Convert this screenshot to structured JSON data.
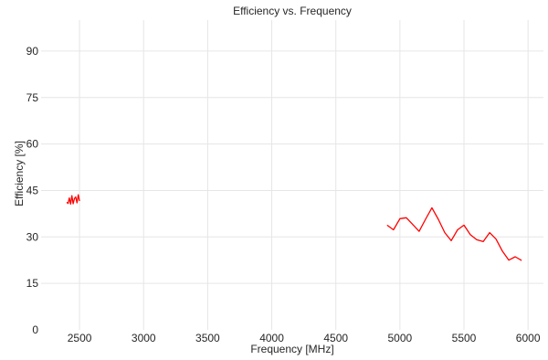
{
  "chart_data": {
    "type": "line",
    "title": "Efficiency vs. Frequency",
    "xlabel": "Frequency [MHz]",
    "ylabel": "Efficiency [%]",
    "xlim": [
      2200,
      6120
    ],
    "ylim": [
      0,
      100
    ],
    "xticks": [
      2500,
      3000,
      3500,
      4000,
      4500,
      5000,
      5500,
      6000
    ],
    "yticks": [
      0,
      15,
      30,
      45,
      60,
      75,
      90
    ],
    "grid": true,
    "color": "#ff0000",
    "series": [
      {
        "x": [
          2400,
          2410,
          2420,
          2430,
          2440,
          2450,
          2460,
          2470,
          2480,
          2490,
          2500
        ],
        "y": [
          41.2,
          40.8,
          42.6,
          40.6,
          43.3,
          40.7,
          42.4,
          42.9,
          41.0,
          43.6,
          41.6
        ]
      },
      {
        "x": [
          4900,
          4950,
          5000,
          5050,
          5100,
          5150,
          5200,
          5250,
          5300,
          5350,
          5400,
          5450,
          5500,
          5550,
          5600,
          5650,
          5700,
          5750,
          5800,
          5850,
          5900,
          5950
        ],
        "y": [
          33.8,
          32.3,
          35.9,
          36.2,
          34.0,
          31.8,
          35.7,
          39.4,
          35.7,
          31.4,
          28.8,
          32.3,
          33.8,
          30.7,
          29.1,
          28.5,
          31.4,
          29.3,
          25.4,
          22.5,
          23.6,
          22.4
        ]
      }
    ]
  }
}
